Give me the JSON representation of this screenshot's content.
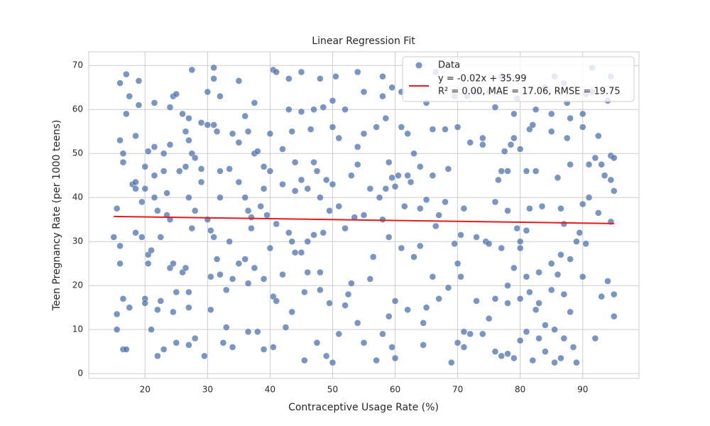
{
  "chart_data": {
    "type": "scatter",
    "title": "Linear Regression Fit",
    "x_label": "Contraceptive Usage Rate (%)",
    "y_label": "Teen Pregnancy Rate (per 1000 teens)",
    "xlim": [
      11,
      99
    ],
    "ylim": [
      -1.1,
      73.1
    ],
    "xticks": [
      20,
      30,
      40,
      50,
      60,
      70,
      80,
      90
    ],
    "yticks": [
      0,
      10,
      20,
      30,
      40,
      50,
      60,
      70
    ],
    "grid": true,
    "legend": "upper right",
    "legend_note": "R² = 0.00, MAE = 17.06, RMSE = 19.75",
    "series": [
      {
        "name": "Data",
        "type": "scatter",
        "color": "#4c72b0",
        "x": [
          15,
          15.5,
          15.5,
          15.5,
          16,
          16,
          16,
          16,
          16.5,
          16.5,
          16.5,
          16.5,
          17,
          17,
          17,
          17.5,
          17.5,
          18,
          18.5,
          18.5,
          18.5,
          18.5,
          19,
          19,
          19.5,
          19.5,
          20,
          20,
          20,
          20,
          20.5,
          20.5,
          20.5,
          21,
          21,
          21.5,
          21.5,
          21.5,
          21.5,
          22,
          22,
          22,
          22.5,
          22.5,
          23,
          23,
          23,
          23.5,
          23.5,
          24,
          24,
          24,
          24,
          24.5,
          24.5,
          24.5,
          25,
          25,
          25,
          25.5,
          26,
          26,
          26.5,
          26.5,
          26.5,
          27,
          27,
          27,
          27,
          27,
          27,
          27.5,
          27.5,
          27.5,
          28,
          28,
          28,
          29,
          29,
          29,
          29.5,
          30,
          30,
          30,
          30.5,
          30.5,
          30.5,
          31,
          31,
          31,
          31,
          31.5,
          31.5,
          32,
          32,
          32,
          32,
          32.5,
          33,
          33,
          33.5,
          33.5,
          34,
          34,
          34,
          35,
          35,
          35,
          35,
          36,
          36,
          36,
          36.5,
          36.5,
          36.5,
          36.5,
          37,
          37,
          37.5,
          37.5,
          37.5,
          38,
          38,
          38.5,
          39,
          39,
          39,
          39,
          39.5,
          40,
          40,
          40,
          40.5,
          40.5,
          40.5,
          41,
          41,
          41,
          42,
          42,
          42,
          42.5,
          43,
          43,
          43,
          43.5,
          43.5,
          43.5,
          44,
          44,
          44,
          45,
          45,
          45,
          45,
          45.5,
          45.5,
          46,
          46,
          46,
          46.5,
          47,
          47,
          47,
          47.5,
          47.5,
          48,
          48,
          48,
          48,
          48.5,
          48.5,
          49,
          49,
          49.5,
          49.5,
          50,
          50,
          50,
          50,
          50.5,
          51,
          51,
          51,
          52,
          52,
          52,
          52.5,
          53,
          53,
          53.5,
          54,
          54,
          54,
          54,
          55,
          55,
          55,
          55,
          56,
          56,
          56.5,
          57,
          57,
          57.5,
          58,
          58,
          58,
          58,
          58.5,
          58.5,
          59,
          59,
          59,
          59.5,
          59.5,
          59.5,
          60,
          60,
          60,
          60.5,
          61,
          61,
          61,
          61.5,
          62,
          62,
          62,
          62.5,
          63,
          63,
          64,
          64,
          64,
          64.5,
          64.5,
          65,
          65,
          65,
          66,
          66,
          66,
          66.5,
          66.5,
          67,
          67,
          68,
          68,
          68.5,
          68.5,
          69,
          69.5,
          69.5,
          70,
          70,
          70,
          70.5,
          70.5,
          71,
          71,
          71,
          71.5,
          72,
          72,
          73,
          73,
          73,
          74,
          74,
          74,
          74.5,
          75,
          75,
          75,
          76,
          76,
          76,
          76,
          76.5,
          77,
          77,
          77,
          77,
          77.5,
          78,
          78,
          78,
          78,
          78,
          78.5,
          79,
          79,
          79,
          79,
          79.5,
          79.5,
          80,
          80,
          80,
          80,
          80,
          81,
          81,
          81,
          81,
          81.5,
          81.5,
          81.5,
          82,
          82,
          82.5,
          82.5,
          82.5,
          83,
          83,
          83,
          83.5,
          84,
          84,
          84,
          85,
          85,
          85,
          85,
          85.5,
          85.5,
          85.5,
          86,
          86,
          86.5,
          86.5,
          86.5,
          87,
          87,
          87,
          87,
          87.5,
          87.5,
          88,
          88,
          88,
          88,
          88.5,
          89,
          89,
          89.5,
          90,
          90,
          90,
          90,
          90.5,
          90.5,
          91,
          91,
          91.5,
          91.5,
          92,
          92,
          92.5,
          92.5,
          93,
          93,
          93.5,
          94,
          94,
          94.5,
          94.5,
          94.5,
          94.5,
          95,
          95,
          95,
          95
        ],
        "values": [
          31,
          37.5,
          13.5,
          10,
          29,
          25,
          53,
          66,
          50,
          48,
          17,
          5.5,
          68,
          59,
          5.5,
          63,
          15,
          43,
          54,
          42,
          32,
          43.5,
          66.5,
          61,
          39,
          31,
          47,
          42,
          17,
          16,
          50.5,
          25,
          27,
          10,
          28,
          61.5,
          51.5,
          45,
          40,
          37,
          14.5,
          4,
          16.5,
          31,
          50,
          46,
          5.5,
          41,
          36,
          60.5,
          52,
          35,
          24,
          63,
          25,
          14,
          63.5,
          18.5,
          7,
          46,
          59,
          23,
          55,
          47,
          24,
          58,
          53,
          40,
          18.5,
          15,
          6.5,
          69,
          50,
          33,
          37,
          49,
          8,
          57,
          46.5,
          43.5,
          4,
          64,
          56.5,
          35,
          32.5,
          22,
          14.5,
          69.5,
          67,
          56.5,
          31,
          55,
          26,
          63,
          46,
          40,
          22.5,
          7,
          19,
          10.5,
          46.5,
          30,
          54.5,
          21.5,
          6,
          66.5,
          52.5,
          43.5,
          25,
          58.5,
          40,
          26,
          55,
          37,
          20.5,
          9.5,
          35.5,
          33,
          61.5,
          50,
          24,
          50.5,
          9.5,
          38,
          47,
          42,
          21.5,
          5.5,
          36,
          54.5,
          46,
          28.5,
          69,
          17.5,
          6,
          68.5,
          34,
          16.5,
          51,
          43,
          22.5,
          10.5,
          67,
          60,
          32,
          55,
          30,
          14,
          48,
          41.5,
          27.5,
          68.5,
          59.5,
          44,
          27.5,
          18.5,
          3,
          42,
          30,
          23,
          55.5,
          60,
          48,
          31.5,
          46,
          7,
          67,
          40,
          23,
          19,
          60.5,
          32,
          44,
          4,
          37,
          16,
          62,
          56,
          43,
          2.5,
          67.5,
          53.5,
          38,
          9,
          60,
          33,
          15.5,
          18,
          45,
          20.5,
          35.5,
          68.5,
          51.5,
          47.5,
          11.5,
          64,
          54.5,
          36,
          7,
          42,
          21.5,
          26.5,
          56,
          3,
          40,
          67.5,
          63,
          35,
          9,
          58,
          42,
          48,
          31,
          13,
          65,
          44.5,
          6,
          42.5,
          16.5,
          3.5,
          45,
          64,
          56,
          28.5,
          38,
          54.5,
          45,
          14.5,
          43.5,
          50,
          26.5,
          47,
          37.5,
          29,
          11.5,
          6.5,
          61.5,
          39.5,
          15,
          45,
          55.5,
          22,
          68.5,
          33.5,
          36,
          17,
          39,
          55.5,
          46.5,
          19.5,
          2.5,
          63,
          29.5,
          56,
          25,
          7,
          31.5,
          22,
          37.5,
          9.5,
          6,
          63,
          52.5,
          9,
          64,
          31,
          16.5,
          53.5,
          52,
          9,
          30,
          64,
          29.5,
          12.5,
          60.5,
          39,
          17,
          5,
          44,
          46,
          67.5,
          28.5,
          4,
          50.5,
          46,
          37,
          20,
          16,
          4.5,
          52,
          59,
          53.5,
          24,
          3.5,
          62.5,
          33,
          51,
          30,
          28.5,
          17,
          7.5,
          46,
          32.5,
          22,
          9.5,
          55.5,
          37.5,
          18.5,
          56.5,
          3,
          60,
          46,
          14.5,
          23,
          16,
          8,
          38,
          65,
          11,
          5,
          59,
          55,
          25,
          19,
          67.5,
          10,
          2.5,
          44.5,
          22.5,
          37.5,
          27,
          3.5,
          66,
          34,
          18,
          8,
          61.5,
          53.5,
          58,
          47.5,
          26,
          14,
          6,
          30,
          2.5,
          32,
          59,
          56,
          38.5,
          22,
          63.5,
          29.5,
          47.5,
          40,
          69.5,
          64,
          49,
          8,
          54,
          36.5,
          47.5,
          17.5,
          45,
          21,
          62,
          67.5,
          49.5,
          44,
          34.5,
          49,
          41.5,
          18,
          13
        ]
      },
      {
        "name": "y = -0.02x + 35.99",
        "type": "line",
        "color": "#e41a1c",
        "x": [
          15,
          95
        ],
        "values": [
          35.69,
          34.09
        ]
      }
    ]
  }
}
